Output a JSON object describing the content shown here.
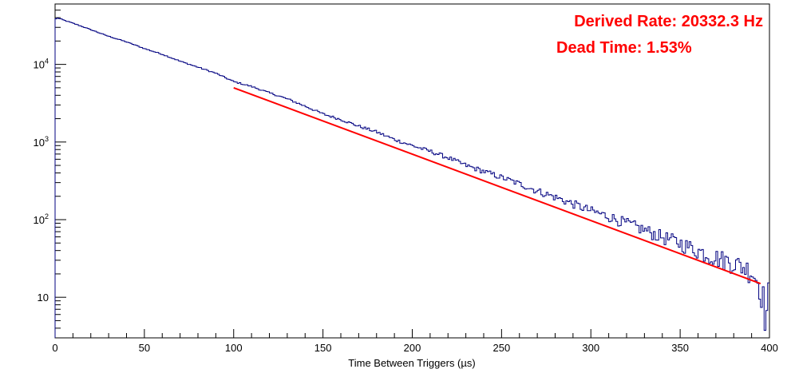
{
  "chart_data": {
    "type": "line",
    "title": "",
    "xlabel": "Time Between Triggers (µs)",
    "ylabel": "",
    "xlim": [
      0,
      400
    ],
    "ylim": [
      3,
      60000
    ],
    "yscale": "log",
    "grid": false,
    "x_ticks": [
      "0",
      "50",
      "100",
      "150",
      "200",
      "250",
      "300",
      "350",
      "400"
    ],
    "y_ticks": [
      {
        "value": 10,
        "base": "10",
        "exp": ""
      },
      {
        "value": 100,
        "base": "10",
        "exp": "2"
      },
      {
        "value": 1000,
        "base": "10",
        "exp": "3"
      },
      {
        "value": 10000,
        "base": "10",
        "exp": "4"
      }
    ],
    "annotations": [
      "Derived Rate: 20332.3 Hz",
      "Dead Time: 1.53%"
    ],
    "series": [
      {
        "kind": "histogram",
        "color": "#000080",
        "bin_width": 1,
        "x": [
          0,
          1,
          2,
          3,
          4,
          5,
          10,
          20,
          30,
          40,
          50,
          60,
          70,
          80,
          90,
          100,
          110,
          120,
          130,
          140,
          150,
          160,
          170,
          180,
          190,
          200,
          210,
          220,
          230,
          240,
          250,
          260,
          270,
          280,
          290,
          300,
          310,
          320,
          330,
          340,
          350,
          360,
          370,
          380,
          390,
          395,
          397,
          398,
          399
        ],
        "values": [
          37000,
          40000,
          39000,
          38500,
          38000,
          37000,
          34000,
          28000,
          23000,
          19500,
          16000,
          13500,
          11000,
          9200,
          7700,
          6000,
          5200,
          4300,
          3600,
          2900,
          2300,
          1950,
          1600,
          1350,
          1080,
          900,
          760,
          630,
          500,
          420,
          350,
          290,
          235,
          195,
          160,
          130,
          110,
          90,
          74,
          60,
          50,
          40,
          33,
          28,
          22,
          14,
          9,
          4,
          11
        ]
      },
      {
        "kind": "fit",
        "color": "#ff0000",
        "x": [
          100,
          395
        ],
        "values": [
          5000,
          15
        ]
      }
    ]
  }
}
